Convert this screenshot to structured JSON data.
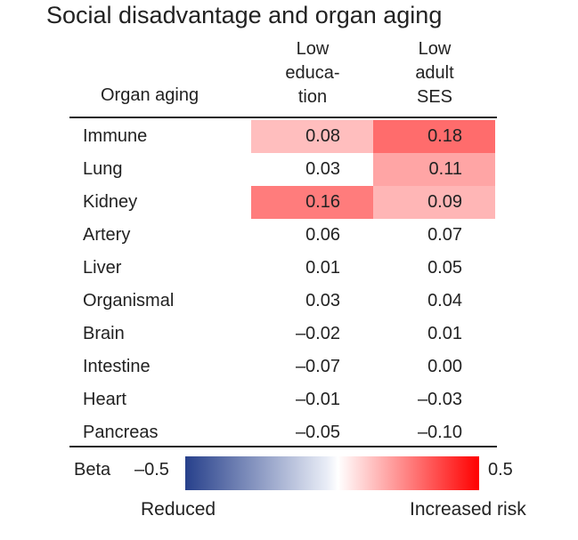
{
  "chart_data": {
    "type": "heatmap",
    "title": "Social disadvantage and organ aging",
    "row_header": "Organ aging",
    "columns": [
      "Low educa- tion",
      "Low adult SES"
    ],
    "rows": [
      {
        "label": "Immune",
        "values": [
          0.08,
          0.18
        ],
        "display": [
          "0.08",
          "0.18"
        ],
        "highlight": [
          true,
          true
        ]
      },
      {
        "label": "Lung",
        "values": [
          0.03,
          0.11
        ],
        "display": [
          "0.03",
          "0.11"
        ],
        "highlight": [
          false,
          true
        ]
      },
      {
        "label": "Kidney",
        "values": [
          0.16,
          0.09
        ],
        "display": [
          "0.16",
          "0.09"
        ],
        "highlight": [
          true,
          true
        ]
      },
      {
        "label": "Artery",
        "values": [
          0.06,
          0.07
        ],
        "display": [
          "0.06",
          "0.07"
        ],
        "highlight": [
          false,
          false
        ]
      },
      {
        "label": "Liver",
        "values": [
          0.01,
          0.05
        ],
        "display": [
          "0.01",
          "0.05"
        ],
        "highlight": [
          false,
          false
        ]
      },
      {
        "label": "Organismal",
        "values": [
          0.03,
          0.04
        ],
        "display": [
          "0.03",
          "0.04"
        ],
        "highlight": [
          false,
          false
        ]
      },
      {
        "label": "Brain",
        "values": [
          -0.02,
          0.01
        ],
        "display": [
          "–0.02",
          "0.01"
        ],
        "highlight": [
          false,
          false
        ]
      },
      {
        "label": "Intestine",
        "values": [
          -0.07,
          0.0
        ],
        "display": [
          "–0.07",
          "0.00"
        ],
        "highlight": [
          false,
          false
        ]
      },
      {
        "label": "Heart",
        "values": [
          -0.01,
          -0.03
        ],
        "display": [
          "–0.01",
          "–0.03"
        ],
        "highlight": [
          false,
          false
        ]
      },
      {
        "label": "Pancreas",
        "values": [
          -0.05,
          -0.1
        ],
        "display": [
          "–0.05",
          "–0.10"
        ],
        "highlight": [
          false,
          false
        ]
      }
    ],
    "colorbar": {
      "label": "Beta",
      "min": -0.5,
      "max": 0.5,
      "min_label": "–0.5",
      "max_label": "0.5",
      "low_label": "Reduced",
      "high_label": "Increased risk",
      "low_color": "#27408b",
      "mid_color": "#ffffff",
      "high_color": "#ff0000"
    }
  }
}
